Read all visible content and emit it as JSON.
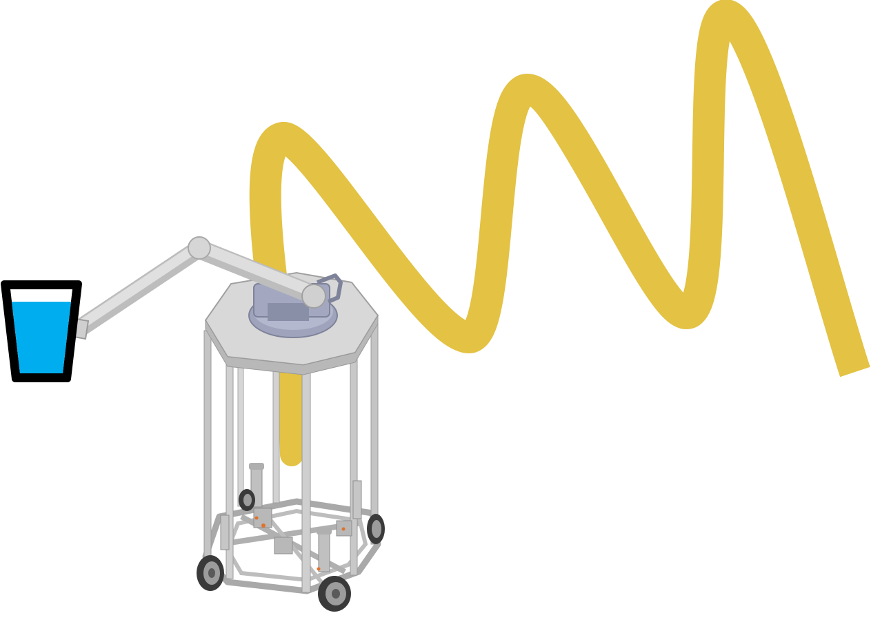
{
  "scene": {
    "description_name": "mobile-robot-with-arm-and-hose",
    "colors": {
      "background": "#ffffff",
      "hose": "#E3C244",
      "water": "#00AEEF",
      "cup_outline": "#000000",
      "cup_inner": "#ffffff",
      "aluminum": "#C9C9C9",
      "aluminum_dark": "#9A9A9A",
      "plate": "#D5D5D5",
      "turret": "#A9AEC6",
      "arm": "#D9D9D9",
      "wheel": "#2F2F2F",
      "accent": "#E0722A"
    },
    "icons": [
      "cup-icon",
      "hose",
      "robot-frame",
      "robot-arm",
      "turret",
      "mecanum-wheel"
    ]
  }
}
